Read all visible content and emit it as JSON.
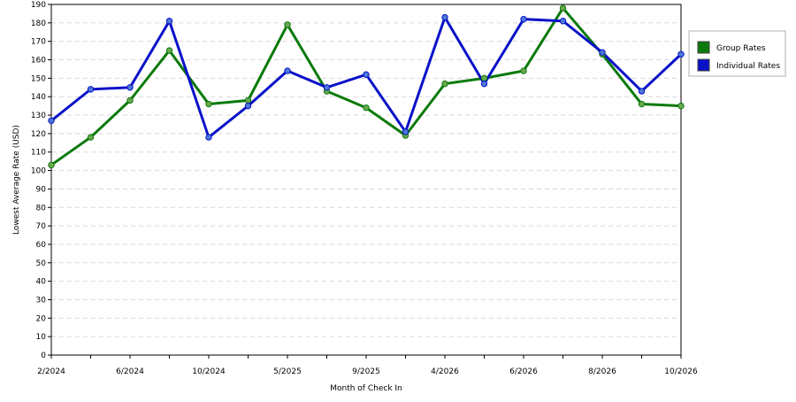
{
  "chart_data": {
    "type": "line",
    "xlabel": "Month of Check In",
    "ylabel": "Lowest Average Rate (USD)",
    "ylim": [
      0,
      190
    ],
    "y_ticks": [
      0,
      10,
      20,
      30,
      40,
      50,
      60,
      70,
      80,
      90,
      100,
      110,
      120,
      130,
      140,
      150,
      160,
      170,
      180,
      190
    ],
    "x_tick_labels": [
      "2/2024",
      "6/2024",
      "10/2024",
      "5/2025",
      "9/2025",
      "4/2026",
      "6/2026",
      "8/2026",
      "10/2026"
    ],
    "grid": "horizontal dashed",
    "legend_position": "right",
    "series": [
      {
        "name": "Group Rates",
        "color": "#0b7a0b",
        "marker_color": "#6aa84f",
        "values": [
          103,
          118,
          138,
          165,
          136,
          138,
          179,
          143,
          134,
          119,
          147,
          150,
          154,
          188,
          163,
          136,
          135
        ]
      },
      {
        "name": "Individual Rates",
        "color": "#0a12c8",
        "marker_color": "#4a78d8",
        "values": [
          127,
          144,
          145,
          181,
          118,
          135,
          154,
          145,
          152,
          121,
          183,
          147,
          182,
          181,
          164,
          143,
          163
        ]
      }
    ]
  }
}
